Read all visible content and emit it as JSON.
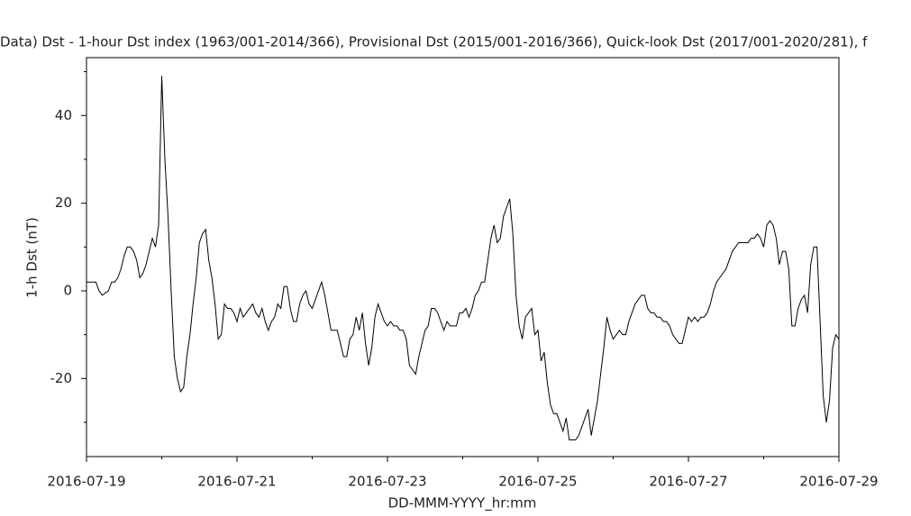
{
  "chart_data": {
    "type": "line",
    "title": "Data)  Dst - 1-hour Dst index (1963/001-2014/366), Provisional Dst (2015/001-2016/366), Quick-look Dst (2017/001-2020/281), f",
    "xlabel": "DD-MMM-YYYY_hr:mm",
    "ylabel": "1-h Dst (nT)",
    "xlim": [
      "2016-07-19",
      "2016-07-29"
    ],
    "xticks": [
      "2016-07-19",
      "2016-07-21",
      "2016-07-23",
      "2016-07-25",
      "2016-07-27",
      "2016-07-29"
    ],
    "xminorticks": [
      "2016-07-20",
      "2016-07-22",
      "2016-07-24",
      "2016-07-26",
      "2016-07-28"
    ],
    "ylim": [
      -37.8,
      53.2
    ],
    "yticks": [
      -20,
      0,
      20,
      40
    ],
    "yminorticks": [
      -30,
      -10,
      10,
      30,
      50
    ],
    "series": [
      {
        "color": "#000000",
        "x": [
          "2016-07-19T00:00",
          "2016-07-19T01:00",
          "2016-07-19T02:00",
          "2016-07-19T03:00",
          "2016-07-19T04:00",
          "2016-07-19T05:00",
          "2016-07-19T06:00",
          "2016-07-19T07:00",
          "2016-07-19T08:00",
          "2016-07-19T09:00",
          "2016-07-19T10:00",
          "2016-07-19T11:00",
          "2016-07-19T12:00",
          "2016-07-19T13:00",
          "2016-07-19T14:00",
          "2016-07-19T15:00",
          "2016-07-19T16:00",
          "2016-07-19T17:00",
          "2016-07-19T18:00",
          "2016-07-19T19:00",
          "2016-07-19T20:00",
          "2016-07-19T21:00",
          "2016-07-19T22:00",
          "2016-07-19T23:00",
          "2016-07-20T00:00",
          "2016-07-20T01:00",
          "2016-07-20T02:00",
          "2016-07-20T03:00",
          "2016-07-20T04:00",
          "2016-07-20T05:00",
          "2016-07-20T06:00",
          "2016-07-20T07:00",
          "2016-07-20T08:00",
          "2016-07-20T09:00",
          "2016-07-20T10:00",
          "2016-07-20T11:00",
          "2016-07-20T12:00",
          "2016-07-20T13:00",
          "2016-07-20T14:00",
          "2016-07-20T15:00",
          "2016-07-20T16:00",
          "2016-07-20T17:00",
          "2016-07-20T18:00",
          "2016-07-20T19:00",
          "2016-07-20T20:00",
          "2016-07-20T21:00",
          "2016-07-20T22:00",
          "2016-07-20T23:00",
          "2016-07-21T00:00",
          "2016-07-21T01:00",
          "2016-07-21T02:00",
          "2016-07-21T03:00",
          "2016-07-21T04:00",
          "2016-07-21T05:00",
          "2016-07-21T06:00",
          "2016-07-21T07:00",
          "2016-07-21T08:00",
          "2016-07-21T09:00",
          "2016-07-21T10:00",
          "2016-07-21T11:00",
          "2016-07-21T12:00",
          "2016-07-21T13:00",
          "2016-07-21T14:00",
          "2016-07-21T15:00",
          "2016-07-21T16:00",
          "2016-07-21T17:00",
          "2016-07-21T18:00",
          "2016-07-21T19:00",
          "2016-07-21T20:00",
          "2016-07-21T21:00",
          "2016-07-21T22:00",
          "2016-07-21T23:00",
          "2016-07-22T00:00",
          "2016-07-22T01:00",
          "2016-07-22T02:00",
          "2016-07-22T03:00",
          "2016-07-22T04:00",
          "2016-07-22T05:00",
          "2016-07-22T06:00",
          "2016-07-22T07:00",
          "2016-07-22T08:00",
          "2016-07-22T09:00",
          "2016-07-22T10:00",
          "2016-07-22T11:00",
          "2016-07-22T12:00",
          "2016-07-22T13:00",
          "2016-07-22T14:00",
          "2016-07-22T15:00",
          "2016-07-22T16:00",
          "2016-07-22T17:00",
          "2016-07-22T18:00",
          "2016-07-22T19:00",
          "2016-07-22T20:00",
          "2016-07-22T21:00",
          "2016-07-22T22:00",
          "2016-07-22T23:00",
          "2016-07-23T00:00",
          "2016-07-23T01:00",
          "2016-07-23T02:00",
          "2016-07-23T03:00",
          "2016-07-23T04:00",
          "2016-07-23T05:00",
          "2016-07-23T06:00",
          "2016-07-23T07:00",
          "2016-07-23T08:00",
          "2016-07-23T09:00",
          "2016-07-23T10:00",
          "2016-07-23T11:00",
          "2016-07-23T12:00",
          "2016-07-23T13:00",
          "2016-07-23T14:00",
          "2016-07-23T15:00",
          "2016-07-23T16:00",
          "2016-07-23T17:00",
          "2016-07-23T18:00",
          "2016-07-23T19:00",
          "2016-07-23T20:00",
          "2016-07-23T21:00",
          "2016-07-23T22:00",
          "2016-07-23T23:00",
          "2016-07-24T00:00",
          "2016-07-24T01:00",
          "2016-07-24T02:00",
          "2016-07-24T03:00",
          "2016-07-24T04:00",
          "2016-07-24T05:00",
          "2016-07-24T06:00",
          "2016-07-24T07:00",
          "2016-07-24T08:00",
          "2016-07-24T09:00",
          "2016-07-24T10:00",
          "2016-07-24T11:00",
          "2016-07-24T12:00",
          "2016-07-24T13:00",
          "2016-07-24T14:00",
          "2016-07-24T15:00",
          "2016-07-24T16:00",
          "2016-07-24T17:00",
          "2016-07-24T18:00",
          "2016-07-24T19:00",
          "2016-07-24T20:00",
          "2016-07-24T21:00",
          "2016-07-24T22:00",
          "2016-07-24T23:00",
          "2016-07-25T00:00",
          "2016-07-25T01:00",
          "2016-07-25T02:00",
          "2016-07-25T03:00",
          "2016-07-25T04:00",
          "2016-07-25T05:00",
          "2016-07-25T06:00",
          "2016-07-25T07:00",
          "2016-07-25T08:00",
          "2016-07-25T09:00",
          "2016-07-25T10:00",
          "2016-07-25T11:00",
          "2016-07-25T12:00",
          "2016-07-25T13:00",
          "2016-07-25T14:00",
          "2016-07-25T15:00",
          "2016-07-25T16:00",
          "2016-07-25T17:00",
          "2016-07-25T18:00",
          "2016-07-25T19:00",
          "2016-07-25T20:00",
          "2016-07-25T21:00",
          "2016-07-25T22:00",
          "2016-07-25T23:00",
          "2016-07-26T00:00",
          "2016-07-26T01:00",
          "2016-07-26T02:00",
          "2016-07-26T03:00",
          "2016-07-26T04:00",
          "2016-07-26T05:00",
          "2016-07-26T06:00",
          "2016-07-26T07:00",
          "2016-07-26T08:00",
          "2016-07-26T09:00",
          "2016-07-26T10:00",
          "2016-07-26T11:00",
          "2016-07-26T12:00",
          "2016-07-26T13:00",
          "2016-07-26T14:00",
          "2016-07-26T15:00",
          "2016-07-26T16:00",
          "2016-07-26T17:00",
          "2016-07-26T18:00",
          "2016-07-26T19:00",
          "2016-07-26T20:00",
          "2016-07-26T21:00",
          "2016-07-26T22:00",
          "2016-07-26T23:00",
          "2016-07-27T00:00",
          "2016-07-27T01:00",
          "2016-07-27T02:00",
          "2016-07-27T03:00",
          "2016-07-27T04:00",
          "2016-07-27T05:00",
          "2016-07-27T06:00",
          "2016-07-27T07:00",
          "2016-07-27T08:00",
          "2016-07-27T09:00",
          "2016-07-27T10:00",
          "2016-07-27T11:00",
          "2016-07-27T12:00",
          "2016-07-27T13:00",
          "2016-07-27T14:00",
          "2016-07-27T15:00",
          "2016-07-27T16:00",
          "2016-07-27T17:00",
          "2016-07-27T18:00",
          "2016-07-27T19:00",
          "2016-07-27T20:00",
          "2016-07-27T21:00",
          "2016-07-27T22:00",
          "2016-07-27T23:00",
          "2016-07-28T00:00",
          "2016-07-28T01:00",
          "2016-07-28T02:00",
          "2016-07-28T03:00",
          "2016-07-28T04:00",
          "2016-07-28T05:00",
          "2016-07-28T06:00",
          "2016-07-28T07:00",
          "2016-07-28T08:00",
          "2016-07-28T09:00",
          "2016-07-28T10:00",
          "2016-07-28T11:00",
          "2016-07-28T12:00",
          "2016-07-28T13:00",
          "2016-07-28T14:00",
          "2016-07-28T15:00",
          "2016-07-28T16:00",
          "2016-07-28T17:00",
          "2016-07-28T18:00",
          "2016-07-28T19:00",
          "2016-07-28T20:00",
          "2016-07-28T21:00",
          "2016-07-28T22:00",
          "2016-07-28T23:00",
          "2016-07-29T00:00"
        ],
        "values": [
          2,
          2,
          2,
          2,
          0,
          -1,
          -0.5,
          0,
          2,
          2,
          3,
          5,
          8,
          10,
          10,
          9,
          7,
          3,
          4,
          6,
          9,
          12,
          10,
          15,
          49,
          30,
          17,
          0,
          -15,
          -20,
          -23,
          -22,
          -15,
          -10,
          -3,
          3,
          11,
          13,
          14,
          7,
          3,
          -3,
          -11,
          -10,
          -3,
          -4,
          -4,
          -5,
          -7,
          -4,
          -6,
          -5,
          -4,
          -3,
          -5,
          -6,
          -4,
          -7,
          -9,
          -7,
          -6,
          -3,
          -4,
          1,
          1,
          -4,
          -7,
          -7,
          -3,
          -1,
          0,
          -3,
          -4,
          -2,
          0,
          2,
          -1,
          -5,
          -9,
          -9,
          -9,
          -12,
          -15,
          -15,
          -11,
          -10,
          -6,
          -9,
          -5,
          -12,
          -17,
          -13,
          -6,
          -3,
          -5,
          -7,
          -8,
          -7,
          -8,
          -8,
          -9,
          -9,
          -11,
          -17,
          -18,
          -19,
          -15,
          -12,
          -9,
          -8,
          -4,
          -4,
          -5,
          -7,
          -9,
          -7,
          -8,
          -8,
          -8,
          -5,
          -5,
          -4,
          -6,
          -4,
          -1,
          0,
          2,
          2,
          7,
          12,
          15,
          11,
          12,
          17,
          19,
          21,
          13,
          -1,
          -8,
          -11,
          -6,
          -5,
          -4,
          -10,
          -9,
          -16,
          -14,
          -21,
          -26,
          -28,
          -28,
          -30,
          -32,
          -29,
          -34,
          -34,
          -34,
          -33,
          -31,
          -29,
          -27,
          -33,
          -29,
          -25,
          -19,
          -13,
          -6,
          -9,
          -11,
          -10,
          -9,
          -10,
          -10,
          -7,
          -5,
          -3,
          -2,
          -1,
          -1,
          -4,
          -5,
          -5,
          -6,
          -6,
          -7,
          -7,
          -8,
          -10,
          -11,
          -12,
          -12,
          -9,
          -6,
          -7,
          -6,
          -7,
          -6,
          -6,
          -5,
          -3,
          0,
          2,
          3,
          4,
          5,
          7,
          9,
          10,
          11,
          11,
          11,
          11,
          12,
          12,
          13,
          12,
          10,
          15,
          16,
          15,
          12,
          6,
          9,
          9,
          5,
          -8,
          -8,
          -4,
          -2,
          -1,
          -5,
          6,
          10,
          10,
          -7,
          -24,
          -30,
          -25,
          -13,
          -10,
          -11
        ]
      }
    ]
  }
}
